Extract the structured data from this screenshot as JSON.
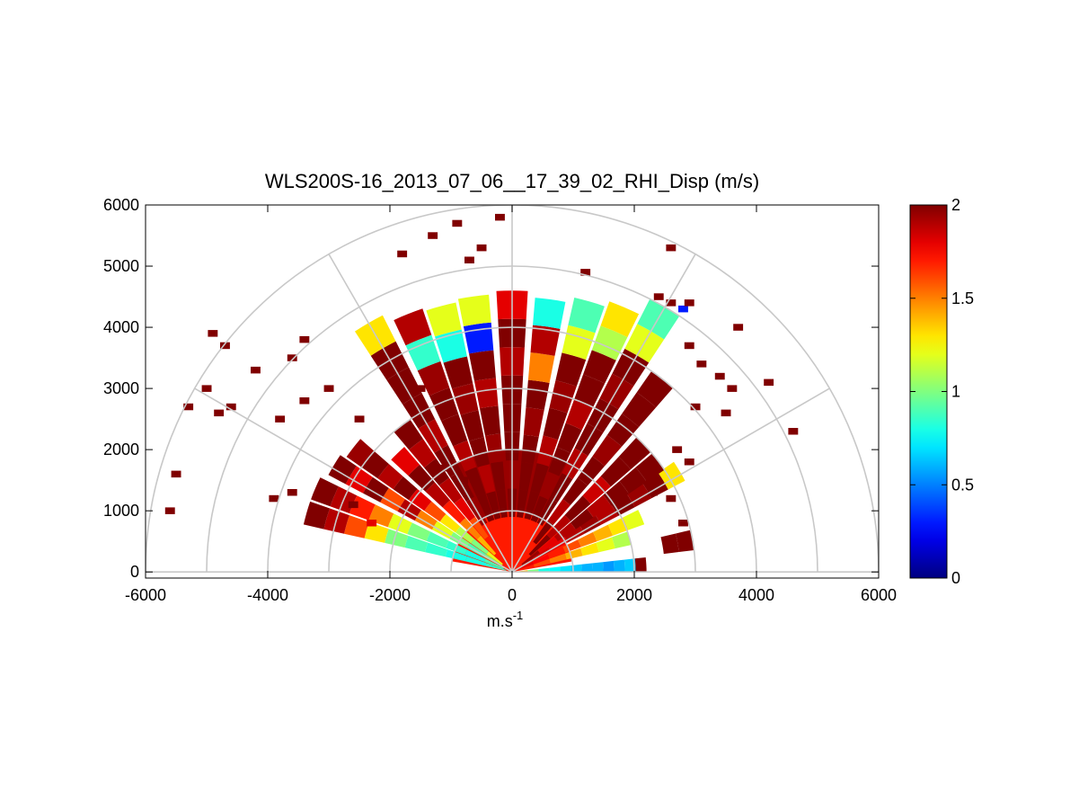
{
  "chart_data": {
    "type": "heatmap",
    "subtype": "polar-rhi-scan",
    "title": "WLS200S-16_2013_07_06__17_39_02_RHI_Disp (m/s)",
    "xlabel_base": "m.s",
    "xlabel_sup": "-1",
    "ylabel": "",
    "xlim": [
      -6000,
      6000
    ],
    "ylim": [
      -100,
      6000
    ],
    "xticks": [
      -6000,
      -4000,
      -2000,
      0,
      2000,
      4000,
      6000
    ],
    "yticks": [
      0,
      1000,
      2000,
      3000,
      4000,
      5000,
      6000
    ],
    "colorbar": {
      "min": 0,
      "max": 2,
      "ticks": [
        0,
        0.5,
        1,
        1.5,
        2
      ],
      "colormap": "jet"
    },
    "polar_grid": {
      "radii": [
        1000,
        2000,
        3000,
        4000,
        5000,
        6000
      ],
      "angles_deg": [
        0,
        30,
        60,
        90,
        120,
        150,
        180
      ]
    },
    "near_field_sectors": [
      {
        "az_from": 10,
        "az_to": 170,
        "r_from": 0,
        "r_to": 1000,
        "value": 1.7
      },
      {
        "az_from": 60,
        "az_to": 120,
        "r_from": 1000,
        "r_to": 2000,
        "value": 1.95
      }
    ],
    "beams": [
      {
        "az": 3,
        "r_start": 80,
        "r_end": 2200,
        "values": [
          1.4,
          1.0,
          0.8,
          0.75,
          0.7,
          0.65,
          0.6,
          0.6,
          0.55,
          0.6,
          0.65,
          2.0
        ]
      },
      {
        "az": 10,
        "r_start": 2500,
        "r_end": 3000,
        "values": [
          2.0,
          2.0
        ]
      },
      {
        "az": 16,
        "r_start": 100,
        "r_end": 2000,
        "values": [
          1.7,
          1.6,
          1.5,
          1.4,
          1.3,
          1.2,
          1.1
        ]
      },
      {
        "az": 23,
        "r_start": 100,
        "r_end": 2300,
        "values": [
          1.8,
          1.75,
          1.7,
          1.6,
          1.5,
          1.4,
          1.3,
          1.2
        ]
      },
      {
        "az": 31,
        "r_start": 100,
        "r_end": 3200,
        "values": [
          1.9,
          1.85,
          1.8,
          1.9,
          1.95,
          1.9,
          2.0,
          1.95,
          2.0,
          1.3
        ]
      },
      {
        "az": 37,
        "r_start": 200,
        "r_end": 3000,
        "values": [
          1.95,
          1.8,
          1.9,
          2.0,
          1.9,
          2.0,
          2.0,
          2.0
        ]
      },
      {
        "az": 44,
        "r_start": 400,
        "r_end": 3000,
        "values": [
          2.0,
          1.9,
          2.0,
          1.85,
          2.0,
          2.0
        ]
      },
      {
        "az": 52,
        "r_start": 600,
        "r_end": 4000,
        "values": [
          2.0,
          1.9,
          2.0,
          2.0,
          1.95,
          2.0,
          2.0,
          2.0
        ]
      },
      {
        "az": 60,
        "r_start": 900,
        "r_end": 5000,
        "values": [
          2.0,
          2.0,
          1.9,
          2.0,
          2.0,
          1.95,
          2.0,
          1.2,
          0.9
        ]
      },
      {
        "az": 67,
        "r_start": 900,
        "r_end": 4700,
        "values": [
          2.0,
          1.95,
          2.0,
          2.0,
          1.9,
          2.0,
          2.0,
          1.1,
          1.3
        ]
      },
      {
        "az": 74,
        "r_start": 900,
        "r_end": 4600,
        "values": [
          2.0,
          2.0,
          1.9,
          2.0,
          1.95,
          2.0,
          1.2,
          0.9
        ]
      },
      {
        "az": 82,
        "r_start": 900,
        "r_end": 4500,
        "values": [
          2.0,
          2.0,
          2.0,
          1.95,
          2.0,
          1.5,
          1.9,
          0.8
        ]
      },
      {
        "az": 90,
        "r_start": 900,
        "r_end": 4600,
        "values": [
          2.0,
          1.95,
          2.0,
          2.0,
          2.0,
          1.9,
          2.0,
          1.8
        ]
      },
      {
        "az": 98,
        "r_start": 900,
        "r_end": 4550,
        "values": [
          2.0,
          2.0,
          1.95,
          2.0,
          1.9,
          2.0,
          0.3,
          1.2
        ]
      },
      {
        "az": 105,
        "r_start": 900,
        "r_end": 4500,
        "values": [
          2.0,
          1.9,
          2.0,
          2.0,
          1.95,
          2.0,
          0.8,
          1.2
        ]
      },
      {
        "az": 112,
        "r_start": 900,
        "r_end": 4550,
        "values": [
          2.0,
          2.0,
          1.9,
          2.0,
          2.0,
          1.95,
          0.85,
          1.9
        ]
      },
      {
        "az": 120,
        "r_start": 900,
        "r_end": 4700,
        "values": [
          1.95,
          2.0,
          2.0,
          1.9,
          2.0,
          2.0,
          2.0,
          1.3
        ]
      },
      {
        "az": 127,
        "r_start": 700,
        "r_end": 3000,
        "values": [
          1.6,
          1.8,
          1.9,
          2.0,
          1.9,
          2.0
        ]
      },
      {
        "az": 134,
        "r_start": 400,
        "r_end": 2700,
        "values": [
          1.4,
          1.5,
          1.7,
          1.9,
          2.0,
          1.8
        ]
      },
      {
        "az": 142,
        "r_start": 200,
        "r_end": 3300,
        "values": [
          1.2,
          1.0,
          1.1,
          1.3,
          1.6,
          1.8,
          2.0,
          1.9,
          2.0,
          1.95
        ]
      },
      {
        "az": 149,
        "r_start": 200,
        "r_end": 3400,
        "values": [
          1.0,
          0.9,
          1.0,
          1.2,
          1.5,
          1.9,
          1.6,
          2.0,
          1.8,
          2.0
        ]
      },
      {
        "az": 157,
        "r_start": 150,
        "r_end": 3500,
        "values": [
          0.9,
          0.8,
          0.85,
          0.9,
          1.0,
          1.2,
          1.5,
          1.7,
          1.9,
          2.0
        ]
      },
      {
        "az": 164,
        "r_start": 100,
        "r_end": 3500,
        "values": [
          0.85,
          0.8,
          0.8,
          0.85,
          0.9,
          1.0,
          1.3,
          1.6,
          1.9,
          2.0
        ]
      }
    ],
    "scatter_cells": [
      {
        "x": -4700,
        "y": 3700,
        "v": 2.0
      },
      {
        "x": -4900,
        "y": 3900,
        "v": 2.0
      },
      {
        "x": -5000,
        "y": 3000,
        "v": 2.0
      },
      {
        "x": -4200,
        "y": 3300,
        "v": 2.0
      },
      {
        "x": -4800,
        "y": 2600,
        "v": 2.0
      },
      {
        "x": -4600,
        "y": 2700,
        "v": 2.0
      },
      {
        "x": -5300,
        "y": 2700,
        "v": 2.0
      },
      {
        "x": -5500,
        "y": 1600,
        "v": 2.0
      },
      {
        "x": -5600,
        "y": 1000,
        "v": 2.0
      },
      {
        "x": -3800,
        "y": 2500,
        "v": 2.0
      },
      {
        "x": -3400,
        "y": 2800,
        "v": 2.0
      },
      {
        "x": -3000,
        "y": 3000,
        "v": 2.0
      },
      {
        "x": -3600,
        "y": 3500,
        "v": 2.0
      },
      {
        "x": -3400,
        "y": 3800,
        "v": 2.0
      },
      {
        "x": -3900,
        "y": 1200,
        "v": 2.0
      },
      {
        "x": -3600,
        "y": 1300,
        "v": 2.0
      },
      {
        "x": -1500,
        "y": 3000,
        "v": 2.0
      },
      {
        "x": -2500,
        "y": 2500,
        "v": 2.0
      },
      {
        "x": -1800,
        "y": 5200,
        "v": 2.0
      },
      {
        "x": -1300,
        "y": 5500,
        "v": 2.0
      },
      {
        "x": -900,
        "y": 5700,
        "v": 2.0
      },
      {
        "x": -700,
        "y": 5100,
        "v": 2.0
      },
      {
        "x": -500,
        "y": 5300,
        "v": 2.0
      },
      {
        "x": -200,
        "y": 5800,
        "v": 2.0
      },
      {
        "x": 1200,
        "y": 4900,
        "v": 2.0
      },
      {
        "x": 2600,
        "y": 5300,
        "v": 2.0
      },
      {
        "x": 2400,
        "y": 4500,
        "v": 2.0
      },
      {
        "x": 2800,
        "y": 4300,
        "v": 0.3
      },
      {
        "x": 2600,
        "y": 4400,
        "v": 2.0
      },
      {
        "x": 2900,
        "y": 4400,
        "v": 2.0
      },
      {
        "x": 3700,
        "y": 4000,
        "v": 2.0
      },
      {
        "x": 2900,
        "y": 3700,
        "v": 2.0
      },
      {
        "x": 3100,
        "y": 3400,
        "v": 2.0
      },
      {
        "x": 3400,
        "y": 3200,
        "v": 2.0
      },
      {
        "x": 3600,
        "y": 3000,
        "v": 2.0
      },
      {
        "x": 4200,
        "y": 3100,
        "v": 2.0
      },
      {
        "x": 3000,
        "y": 2700,
        "v": 2.0
      },
      {
        "x": 3500,
        "y": 2600,
        "v": 2.0
      },
      {
        "x": 4600,
        "y": 2300,
        "v": 2.0
      },
      {
        "x": 2700,
        "y": 2000,
        "v": 2.0
      },
      {
        "x": 2900,
        "y": 1800,
        "v": 2.0
      },
      {
        "x": 2600,
        "y": 1200,
        "v": 2.0
      },
      {
        "x": 2300,
        "y": 1300,
        "v": 2.0
      },
      {
        "x": 2800,
        "y": 800,
        "v": 2.0
      },
      {
        "x": 2850,
        "y": 500,
        "v": 2.0
      },
      {
        "x": -2300,
        "y": 800,
        "v": 1.8
      },
      {
        "x": -2600,
        "y": 1100,
        "v": 2.0
      },
      {
        "x": -1100,
        "y": 1700,
        "v": 2.0
      },
      {
        "x": -800,
        "y": 1500,
        "v": 2.0
      }
    ]
  }
}
